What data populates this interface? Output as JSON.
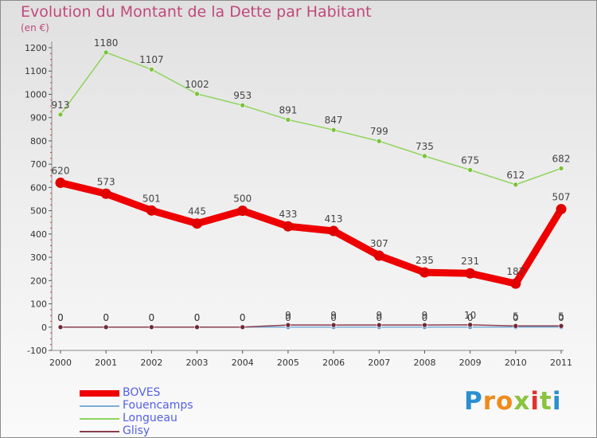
{
  "chart_data": {
    "type": "line",
    "title": "Evolution du Montant de la Dette par Habitant",
    "subtitle": "(en €)",
    "xlabel": "",
    "ylabel": "",
    "categories": [
      "2000",
      "2001",
      "2002",
      "2003",
      "2004",
      "2005",
      "2006",
      "2007",
      "2008",
      "2009",
      "2010",
      "2011"
    ],
    "ylim": [
      -100,
      1200
    ],
    "yticks": [
      -100,
      0,
      100,
      200,
      300,
      400,
      500,
      600,
      700,
      800,
      900,
      1000,
      1100,
      1200
    ],
    "grid": false,
    "legend_position": "bottom-left",
    "series": [
      {
        "name": "Longueau",
        "color": "#8fd45a",
        "marker": "#7cc23a",
        "values": [
          913,
          1180,
          1107,
          1002,
          953,
          891,
          847,
          799,
          735,
          675,
          612,
          682
        ],
        "labels": [
          "913",
          "1180",
          "1107",
          "1002",
          "953",
          "891",
          "847",
          "799",
          "735",
          "675",
          "612",
          "682"
        ]
      },
      {
        "name": "Fouencamps",
        "color": "#7aaed8",
        "marker": "#6a9cc8",
        "values": [
          0,
          0,
          0,
          0,
          0,
          0,
          0,
          0,
          0,
          0,
          0,
          0
        ],
        "labels": [
          "0",
          "0",
          "0",
          "0",
          "0",
          "0",
          "0",
          "0",
          "0",
          "0",
          "0",
          "0"
        ]
      },
      {
        "name": "Glisy",
        "color": "#8a3e4e",
        "marker": "#6e2a38",
        "values": [
          0,
          0,
          0,
          0,
          0,
          9,
          9,
          9,
          9,
          10,
          5,
          5
        ],
        "labels": [
          "0",
          "0",
          "0",
          "0",
          "0",
          "9",
          "9",
          "9",
          "9",
          "10",
          "5",
          "5"
        ]
      },
      {
        "name": "BOVES",
        "color": "#ee0000",
        "marker": "#e00000",
        "values": [
          620,
          573,
          501,
          445,
          500,
          433,
          413,
          307,
          235,
          231,
          187,
          507
        ],
        "labels": [
          "620",
          "573",
          "501",
          "445",
          "500",
          "433",
          "413",
          "307",
          "235",
          "231",
          "187",
          "507"
        ]
      }
    ],
    "legend_order": [
      "BOVES",
      "Fouencamps",
      "Longueau",
      "Glisy"
    ]
  },
  "logo": {
    "letters": [
      "P",
      "r",
      "o",
      "x",
      "i",
      "t",
      "i"
    ],
    "colors": [
      "#2a8fd0",
      "#f08a1c",
      "#f08a1c",
      "#8ac43f",
      "#e0342c",
      "#8ac43f",
      "#2a8fd0"
    ]
  }
}
